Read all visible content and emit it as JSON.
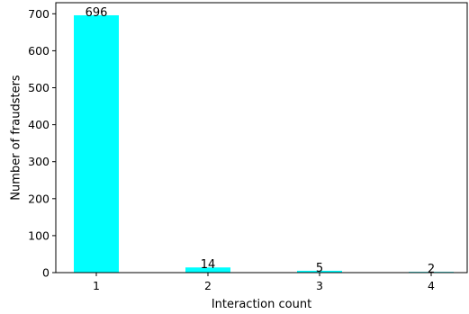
{
  "chart_data": {
    "type": "bar",
    "categories": [
      "1",
      "2",
      "3",
      "4"
    ],
    "values": [
      696,
      14,
      5,
      2
    ],
    "data_labels": [
      "696",
      "14",
      "5",
      "2"
    ],
    "title": "",
    "xlabel": "Interaction count",
    "ylabel": "Number of fraudsters",
    "ylim": [
      0,
      730
    ],
    "yticks": [
      0,
      100,
      200,
      300,
      400,
      500,
      600,
      700
    ],
    "bar_color": "#00ffff",
    "grid": false,
    "legend": "none"
  }
}
